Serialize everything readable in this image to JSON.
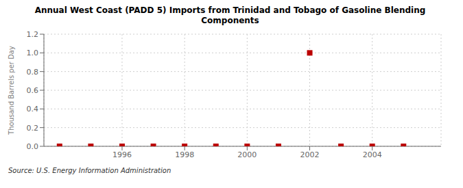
{
  "chart_data": {
    "type": "scatter",
    "title": "Annual West Coast (PADD 5) Imports from Trinidad and Tobago of Gasoline Blending\nComponents",
    "y_label": "Thousand Barrels per Day",
    "annotations": [
      "Source: U.S. Energy Information Administration"
    ],
    "x": [
      1994,
      1995,
      1996,
      1997,
      1998,
      1999,
      2000,
      2001,
      2002,
      2003,
      2004,
      2005
    ],
    "values": [
      0.0,
      0.0,
      0.0,
      0.0,
      0.0,
      0.0,
      0.0,
      0.0,
      1.0,
      0.0,
      0.0,
      0.0
    ],
    "color": "#bb0000",
    "marker": "square",
    "xlim": [
      1993.5,
      2006.2
    ],
    "xticks": [
      1996,
      1998,
      2000,
      2002,
      2004
    ],
    "ylim": [
      0.0,
      1.2
    ],
    "yticks": [
      {
        "value": 0.0,
        "label": "0.0"
      },
      0.2,
      0.4,
      0.6,
      0.8,
      {
        "value": 1.0,
        "label": "1.0"
      },
      1.2
    ],
    "grid": true
  }
}
